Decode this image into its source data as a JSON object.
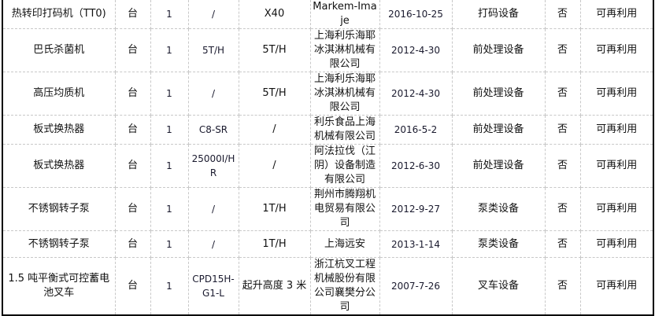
{
  "rows": [
    {
      "name": "热转印打码机（TT0)",
      "unit": "台",
      "qty": "1",
      "model": "/",
      "spec": "X40",
      "maker": "Markem-Imaje",
      "date": "2016-10-25",
      "category": "打码设备",
      "flag": "否",
      "status": "可再利用"
    },
    {
      "name": "巴氏杀菌机",
      "unit": "台",
      "qty": "1",
      "model": "5T/H",
      "spec": "5T/H",
      "maker": "上海利乐海耶冰淇淋机械有限公司",
      "date": "2012-4-30",
      "category": "前处理设备",
      "flag": "否",
      "status": "可再利用"
    },
    {
      "name": "高压均质机",
      "unit": "台",
      "qty": "1",
      "model": "/",
      "spec": "5T/H",
      "maker": "上海利乐海耶冰淇淋机械有限公司",
      "date": "2012-4-30",
      "category": "前处理设备",
      "flag": "否",
      "status": "可再利用"
    },
    {
      "name": "板式换热器",
      "unit": "台",
      "qty": "1",
      "model": "C8-SR",
      "spec": "/",
      "maker": "利乐食品上海机械有限公司",
      "date": "2016-5-2",
      "category": "前处理设备",
      "flag": "否",
      "status": "可再利用"
    },
    {
      "name": "板式换热器",
      "unit": "台",
      "qty": "1",
      "model": "25000I/HR",
      "spec": "/",
      "maker": "阿法拉伐（江阴）设备制造有限公司",
      "date": "2012-6-30",
      "category": "前处理设备",
      "flag": "否",
      "status": "可再利用"
    },
    {
      "name": "不锈钢转子泵",
      "unit": "台",
      "qty": "1",
      "model": "/",
      "spec": "1T/H",
      "maker": "荆州市腾翔机电贸易有限公司",
      "date": "2012-9-27",
      "category": "泵类设备",
      "flag": "否",
      "status": "可再利用"
    },
    {
      "name": "不锈钢转子泵",
      "unit": "台",
      "qty": "1",
      "model": "/",
      "spec": "1T/H",
      "maker": "上海远安",
      "date": "2013-1-14",
      "category": "泵类设备",
      "flag": "否",
      "status": "可再利用"
    },
    {
      "name": "1.5 吨平衡式可控蓄电池叉车",
      "unit": "台",
      "qty": "1",
      "model": "CPD15H-G1-L",
      "spec": "起升高度 3 米",
      "maker": "浙江杭叉工程机械股份有限公司襄樊分公司",
      "date": "2007-7-26",
      "category": "叉车设备",
      "flag": "否",
      "status": "可再利用"
    }
  ]
}
